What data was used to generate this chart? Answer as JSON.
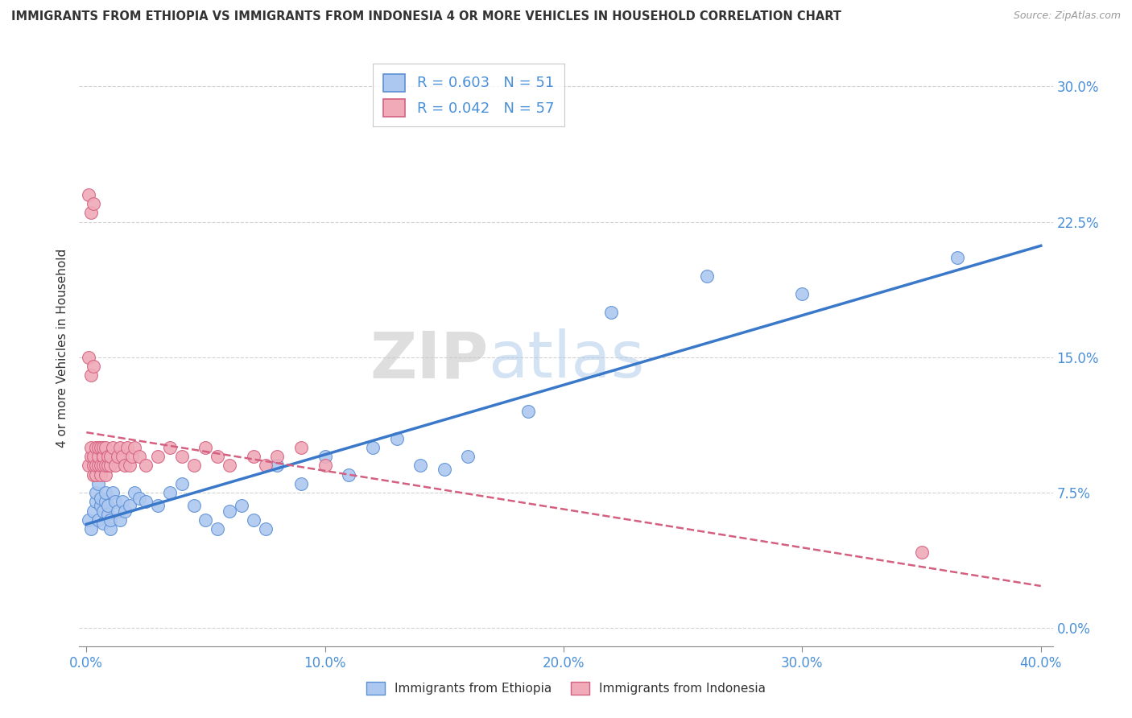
{
  "title": "IMMIGRANTS FROM ETHIOPIA VS IMMIGRANTS FROM INDONESIA 4 OR MORE VEHICLES IN HOUSEHOLD CORRELATION CHART",
  "source": "Source: ZipAtlas.com",
  "ylabel": "4 or more Vehicles in Household",
  "xlabel_ethiopia": "Immigrants from Ethiopia",
  "xlabel_indonesia": "Immigrants from Indonesia",
  "xlim": [
    -0.003,
    0.405
  ],
  "ylim": [
    -0.01,
    0.32
  ],
  "xticks": [
    0.0,
    0.1,
    0.2,
    0.3,
    0.4
  ],
  "yticks": [
    0.0,
    0.075,
    0.15,
    0.225,
    0.3
  ],
  "ytick_labels": [
    "0.0%",
    "7.5%",
    "15.0%",
    "22.5%",
    "30.0%"
  ],
  "xtick_labels": [
    "0.0%",
    "10.0%",
    "20.0%",
    "30.0%",
    "40.0%"
  ],
  "R_ethiopia": 0.603,
  "N_ethiopia": 51,
  "R_indonesia": 0.042,
  "N_indonesia": 57,
  "ethiopia_color": "#adc8f0",
  "indonesia_color": "#f0aab8",
  "ethiopia_edge_color": "#5b8fd4",
  "indonesia_edge_color": "#d46080",
  "ethiopia_line_color": "#3a78c9",
  "indonesia_line_color": "#d46080",
  "watermark_zip": "ZIP",
  "watermark_atlas": "atlas",
  "ethiopia_x": [
    0.001,
    0.002,
    0.003,
    0.004,
    0.004,
    0.005,
    0.005,
    0.006,
    0.006,
    0.007,
    0.007,
    0.008,
    0.008,
    0.009,
    0.009,
    0.01,
    0.01,
    0.011,
    0.012,
    0.013,
    0.014,
    0.015,
    0.016,
    0.018,
    0.02,
    0.022,
    0.025,
    0.03,
    0.035,
    0.04,
    0.045,
    0.05,
    0.055,
    0.06,
    0.065,
    0.07,
    0.075,
    0.08,
    0.09,
    0.1,
    0.11,
    0.12,
    0.13,
    0.14,
    0.15,
    0.16,
    0.185,
    0.22,
    0.26,
    0.3,
    0.365
  ],
  "ethiopia_y": [
    0.06,
    0.055,
    0.065,
    0.07,
    0.075,
    0.06,
    0.08,
    0.068,
    0.072,
    0.058,
    0.065,
    0.07,
    0.075,
    0.063,
    0.068,
    0.055,
    0.06,
    0.075,
    0.07,
    0.065,
    0.06,
    0.07,
    0.065,
    0.068,
    0.075,
    0.072,
    0.07,
    0.068,
    0.075,
    0.08,
    0.068,
    0.06,
    0.055,
    0.065,
    0.068,
    0.06,
    0.055,
    0.09,
    0.08,
    0.095,
    0.085,
    0.1,
    0.105,
    0.09,
    0.088,
    0.095,
    0.12,
    0.175,
    0.195,
    0.185,
    0.205
  ],
  "indonesia_x": [
    0.001,
    0.002,
    0.002,
    0.003,
    0.003,
    0.003,
    0.004,
    0.004,
    0.004,
    0.005,
    0.005,
    0.005,
    0.006,
    0.006,
    0.006,
    0.007,
    0.007,
    0.007,
    0.007,
    0.008,
    0.008,
    0.008,
    0.009,
    0.009,
    0.01,
    0.01,
    0.011,
    0.012,
    0.013,
    0.014,
    0.015,
    0.016,
    0.017,
    0.018,
    0.019,
    0.02,
    0.022,
    0.025,
    0.03,
    0.035,
    0.04,
    0.045,
    0.05,
    0.055,
    0.06,
    0.07,
    0.075,
    0.08,
    0.09,
    0.1,
    0.001,
    0.002,
    0.003,
    0.001,
    0.002,
    0.003,
    0.35
  ],
  "indonesia_y": [
    0.09,
    0.095,
    0.1,
    0.085,
    0.09,
    0.095,
    0.085,
    0.09,
    0.1,
    0.09,
    0.095,
    0.1,
    0.085,
    0.09,
    0.1,
    0.095,
    0.09,
    0.095,
    0.1,
    0.085,
    0.09,
    0.1,
    0.09,
    0.095,
    0.09,
    0.095,
    0.1,
    0.09,
    0.095,
    0.1,
    0.095,
    0.09,
    0.1,
    0.09,
    0.095,
    0.1,
    0.095,
    0.09,
    0.095,
    0.1,
    0.095,
    0.09,
    0.1,
    0.095,
    0.09,
    0.095,
    0.09,
    0.095,
    0.1,
    0.09,
    0.15,
    0.14,
    0.145,
    0.24,
    0.23,
    0.235,
    0.042
  ]
}
